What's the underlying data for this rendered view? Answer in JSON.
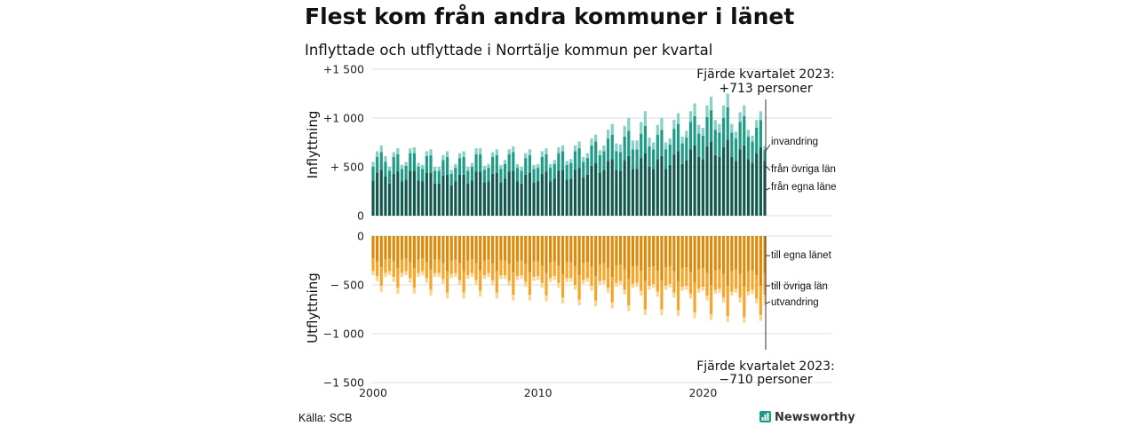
{
  "title": "Flest kom från andra kommuner i länet",
  "subtitle": "Inflyttade och utflyttade i Norrtälje kommun per kvartal",
  "source": "Källa: SCB",
  "brand": "Newsworthy",
  "colors": {
    "in_same_county": "#10594d",
    "in_other_counties": "#1e9b86",
    "in_immigration": "#86d1c4",
    "out_same_county": "#dc8a09",
    "out_other_counties": "#f7a528",
    "out_emigration": "#fbd58e",
    "grid": "#dcdcdc"
  },
  "chart_data": [
    {
      "type": "bar",
      "stacked": true,
      "panel": "top",
      "ylabel": "Inflyttning",
      "ylim": [
        0,
        1500
      ],
      "yticks": [
        0,
        500,
        1000,
        1500
      ],
      "ytick_labels": [
        "0",
        "+  500",
        "+1 000",
        "+1 500"
      ],
      "grid": true,
      "x_start": "2000 Q1",
      "x_end": "2023 Q4",
      "legend": [
        "invandring",
        "från övriga län",
        "från egna läne"
      ],
      "annotation": {
        "line1": "Fjärde kvartalet 2023:",
        "line2": "+713 personer"
      },
      "series": [
        {
          "name": "från egna läne",
          "key": "same",
          "values": [
            360,
            440,
            470,
            400,
            330,
            430,
            450,
            350,
            370,
            460,
            460,
            360,
            350,
            440,
            440,
            330,
            330,
            410,
            420,
            310,
            350,
            420,
            420,
            330,
            360,
            450,
            450,
            340,
            350,
            430,
            440,
            340,
            380,
            450,
            460,
            350,
            330,
            420,
            440,
            340,
            350,
            430,
            450,
            350,
            380,
            460,
            470,
            370,
            380,
            470,
            490,
            390,
            420,
            510,
            540,
            440,
            470,
            560,
            580,
            470,
            460,
            570,
            610,
            480,
            480,
            590,
            640,
            500,
            480,
            580,
            610,
            480,
            520,
            630,
            660,
            530,
            570,
            680,
            720,
            600,
            580,
            710,
            760,
            620,
            600,
            700,
            780,
            600,
            560,
            680,
            720,
            580,
            540,
            640,
            700,
            560
          ]
        },
        {
          "name": "från övriga län",
          "key": "other",
          "values": [
            140,
            160,
            180,
            150,
            130,
            170,
            180,
            130,
            140,
            180,
            180,
            140,
            130,
            170,
            180,
            130,
            130,
            160,
            180,
            120,
            140,
            170,
            180,
            130,
            140,
            180,
            180,
            130,
            140,
            170,
            180,
            140,
            150,
            180,
            190,
            140,
            130,
            170,
            180,
            140,
            140,
            170,
            180,
            140,
            150,
            180,
            190,
            150,
            160,
            190,
            200,
            160,
            170,
            210,
            220,
            180,
            190,
            230,
            250,
            190,
            190,
            240,
            260,
            200,
            200,
            250,
            280,
            210,
            200,
            250,
            270,
            200,
            210,
            260,
            280,
            210,
            230,
            280,
            300,
            240,
            240,
            300,
            320,
            260,
            250,
            300,
            330,
            250,
            230,
            280,
            300,
            230,
            220,
            260,
            280,
            113
          ]
        },
        {
          "name": "invandring",
          "key": "imm",
          "values": [
            50,
            60,
            70,
            60,
            40,
            50,
            60,
            40,
            40,
            50,
            60,
            40,
            40,
            50,
            60,
            40,
            40,
            50,
            60,
            40,
            40,
            50,
            60,
            40,
            40,
            60,
            60,
            40,
            40,
            50,
            60,
            40,
            40,
            50,
            60,
            40,
            40,
            50,
            60,
            40,
            40,
            60,
            60,
            40,
            40,
            60,
            60,
            40,
            40,
            60,
            70,
            50,
            50,
            70,
            70,
            50,
            60,
            90,
            110,
            80,
            80,
            110,
            130,
            90,
            90,
            120,
            150,
            90,
            70,
            100,
            120,
            70,
            60,
            90,
            110,
            70,
            70,
            110,
            130,
            90,
            80,
            120,
            140,
            100,
            90,
            130,
            140,
            90,
            70,
            100,
            110,
            70,
            60,
            80,
            90,
            40
          ]
        }
      ]
    },
    {
      "type": "bar",
      "stacked": true,
      "panel": "bottom",
      "ylabel": "Utflyttning",
      "ylim": [
        -1500,
        0
      ],
      "yticks": [
        0,
        -500,
        -1000,
        -1500
      ],
      "ytick_labels": [
        "0",
        "−  500",
        "−1 000",
        "−1 500"
      ],
      "grid": true,
      "x_start": "2000 Q1",
      "x_end": "2023 Q4",
      "xticks": [
        2000,
        2010,
        2020
      ],
      "legend": [
        "till egna länet",
        "till övriga län",
        "utvandring"
      ],
      "annotation": {
        "line1": "Fjärde kvartalet 2023:",
        "line2": "−710 personer"
      },
      "series": [
        {
          "name": "till egna länet",
          "key": "same",
          "values": [
            -230,
            -260,
            -320,
            -240,
            -230,
            -260,
            -330,
            -240,
            -230,
            -270,
            -330,
            -240,
            -230,
            -270,
            -340,
            -240,
            -240,
            -280,
            -360,
            -250,
            -240,
            -280,
            -360,
            -250,
            -240,
            -280,
            -350,
            -250,
            -240,
            -280,
            -360,
            -250,
            -250,
            -290,
            -370,
            -260,
            -250,
            -290,
            -370,
            -260,
            -260,
            -300,
            -380,
            -270,
            -260,
            -300,
            -390,
            -270,
            -270,
            -310,
            -400,
            -280,
            -270,
            -320,
            -410,
            -290,
            -280,
            -330,
            -420,
            -300,
            -290,
            -340,
            -440,
            -310,
            -300,
            -350,
            -460,
            -320,
            -310,
            -350,
            -460,
            -320,
            -310,
            -360,
            -470,
            -330,
            -320,
            -370,
            -480,
            -340,
            -330,
            -380,
            -500,
            -350,
            -340,
            -390,
            -510,
            -360,
            -340,
            -390,
            -520,
            -360,
            -350,
            -400,
            -510,
            -380
          ]
        },
        {
          "name": "till övriga län",
          "key": "other",
          "values": [
            -130,
            -150,
            -190,
            -140,
            -130,
            -160,
            -200,
            -140,
            -130,
            -160,
            -200,
            -140,
            -130,
            -160,
            -210,
            -140,
            -140,
            -160,
            -220,
            -140,
            -140,
            -170,
            -220,
            -150,
            -140,
            -170,
            -210,
            -150,
            -140,
            -170,
            -220,
            -150,
            -150,
            -170,
            -230,
            -150,
            -150,
            -180,
            -230,
            -160,
            -150,
            -180,
            -230,
            -160,
            -150,
            -180,
            -240,
            -160,
            -160,
            -190,
            -250,
            -170,
            -160,
            -190,
            -250,
            -170,
            -170,
            -200,
            -260,
            -180,
            -170,
            -210,
            -270,
            -180,
            -180,
            -210,
            -290,
            -190,
            -180,
            -220,
            -290,
            -190,
            -180,
            -220,
            -290,
            -190,
            -190,
            -220,
            -300,
            -200,
            -190,
            -230,
            -300,
            -200,
            -200,
            -240,
            -310,
            -210,
            -200,
            -240,
            -310,
            -210,
            -200,
            -240,
            -300,
            -220
          ]
        },
        {
          "name": "utvandring",
          "key": "imm",
          "values": [
            -40,
            -50,
            -60,
            -40,
            -40,
            -50,
            -60,
            -40,
            -40,
            -50,
            -60,
            -40,
            -40,
            -50,
            -60,
            -40,
            -40,
            -50,
            -60,
            -40,
            -40,
            -50,
            -60,
            -40,
            -40,
            -50,
            -60,
            -40,
            -40,
            -50,
            -60,
            -40,
            -40,
            -50,
            -60,
            -40,
            -40,
            -50,
            -60,
            -40,
            -40,
            -50,
            -60,
            -40,
            -40,
            -50,
            -60,
            -40,
            -40,
            -50,
            -60,
            -40,
            -40,
            -50,
            -60,
            -40,
            -40,
            -50,
            -60,
            -40,
            -40,
            -50,
            -60,
            -40,
            -40,
            -50,
            -60,
            -40,
            -40,
            -50,
            -60,
            -40,
            -40,
            -50,
            -60,
            -40,
            -40,
            -50,
            -60,
            -40,
            -40,
            -50,
            -60,
            -40,
            -40,
            -50,
            -60,
            -40,
            -40,
            -50,
            -60,
            -40,
            -40,
            -50,
            -60,
            -110
          ]
        }
      ]
    }
  ]
}
